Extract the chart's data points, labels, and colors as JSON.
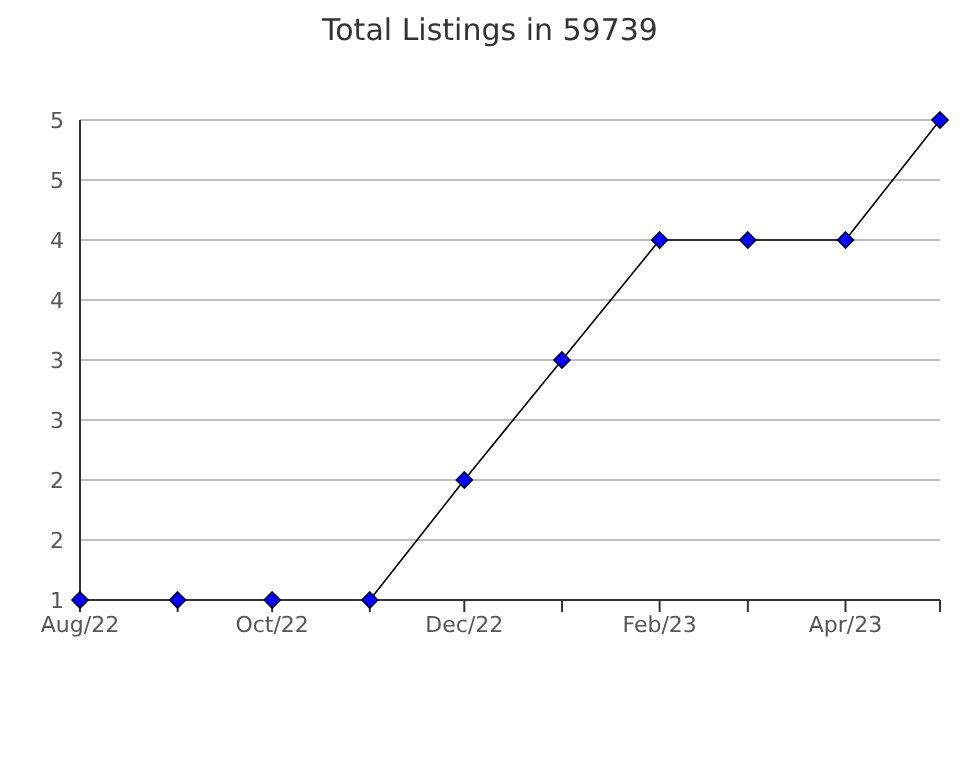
{
  "chart_data": {
    "type": "line",
    "title": "Total Listings in 59739",
    "x": [
      "2022-08",
      "2022-09",
      "2022-10",
      "2022-11",
      "2022-12",
      "2023-01",
      "2023-02",
      "2023-03",
      "2023-04",
      "2023-05"
    ],
    "series": [
      {
        "color": "#0000ff",
        "values": [
          1,
          1,
          1,
          1,
          2,
          3,
          4,
          4,
          4,
          5
        ]
      }
    ],
    "xlim": [
      "2022-08",
      "2023-05"
    ],
    "xticks": [
      {
        "value": "2022-08",
        "label": "Aug/22"
      },
      {
        "value": "2022-09",
        "label": null
      },
      {
        "value": "2022-10",
        "label": "Oct/22"
      },
      {
        "value": "2022-11",
        "label": null
      },
      {
        "value": "2022-12",
        "label": "Dec/22"
      },
      {
        "value": "2023-01",
        "label": null
      },
      {
        "value": "2023-02",
        "label": "Feb/23"
      },
      {
        "value": "2023-03",
        "label": null
      },
      {
        "value": "2023-04",
        "label": "Apr/23"
      },
      {
        "value": "2023-05",
        "label": null
      }
    ],
    "ylim": [
      1,
      5
    ],
    "yticks": [
      1,
      {
        "value": 1.5,
        "label": "2"
      },
      2,
      {
        "value": 2.5,
        "label": "3"
      },
      3,
      {
        "value": 3.5,
        "label": "4"
      },
      4,
      {
        "value": 4.5,
        "label": "5"
      },
      5
    ],
    "grid": "y",
    "marker": "diamond",
    "line_style": "solid"
  }
}
